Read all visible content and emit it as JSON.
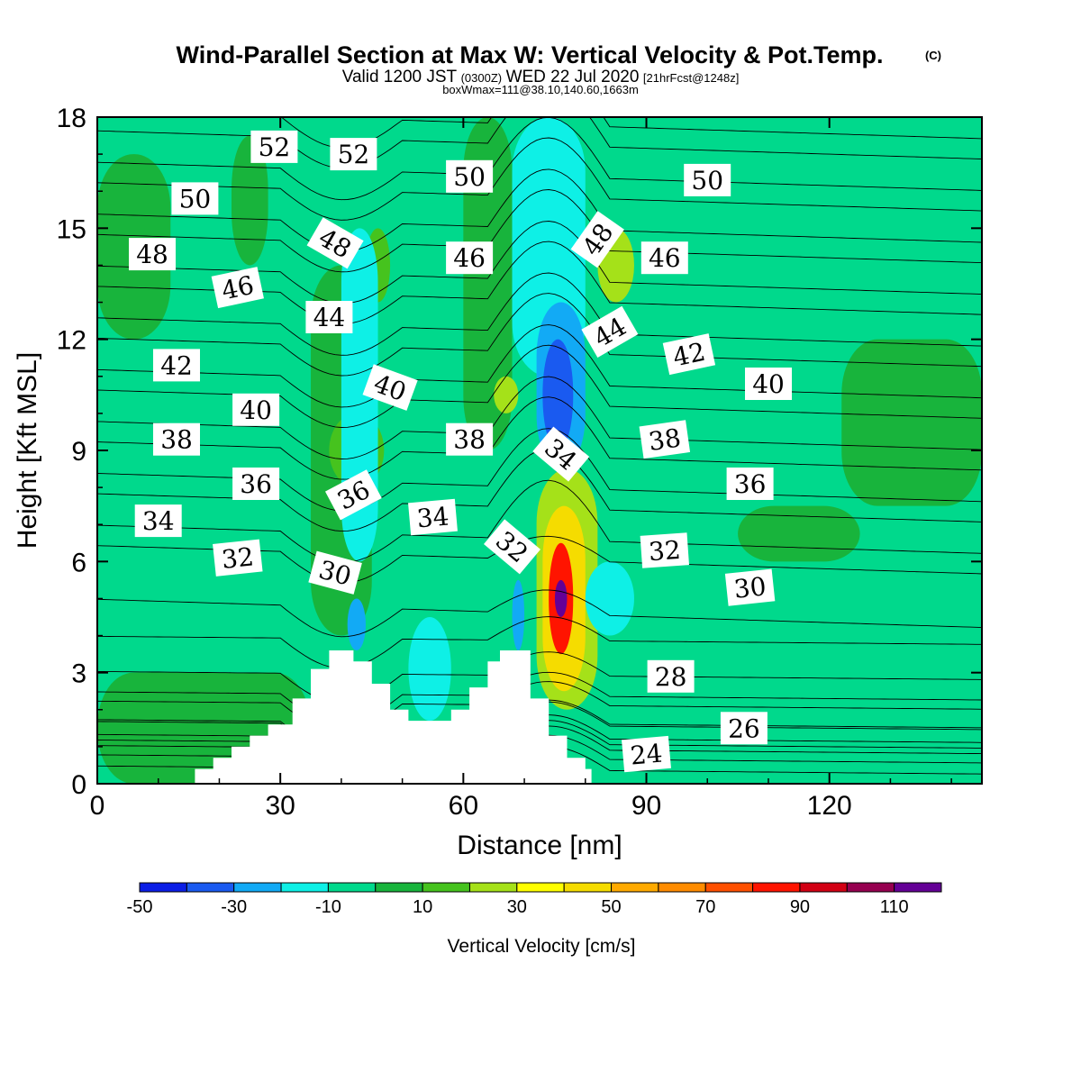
{
  "header": {
    "title": "Wind-Parallel Section at Max W: Vertical Velocity & Pot.Temp.",
    "copyright": "(C)",
    "valid_prefix": "Valid 1200 JST",
    "valid_utc": "(0300Z)",
    "valid_date": "WED 22 Jul 2020",
    "forecast": "[21hrFcst@1248z]",
    "box_info": "boxWmax=111@38.10,140.60,1663m"
  },
  "chart_data": {
    "type": "heatmap",
    "xlabel": "Distance [nm]",
    "ylabel": "Height [Kft MSL]",
    "xlim": [
      0,
      145
    ],
    "ylim": [
      0,
      18
    ],
    "x_ticks": [
      "0",
      "30",
      "60",
      "90",
      "120"
    ],
    "y_ticks": [
      "0",
      "3",
      "6",
      "9",
      "12",
      "15",
      "18"
    ],
    "colorbar": {
      "label": "Vertical Velocity [cm/s]",
      "bounds": [
        -50,
        120
      ],
      "levels": [
        -50,
        -40,
        -30,
        -20,
        -10,
        0,
        10,
        20,
        30,
        40,
        50,
        60,
        70,
        80,
        90,
        100,
        110,
        120
      ],
      "tick_labels": [
        "-50",
        "-30",
        "-10",
        "10",
        "30",
        "50",
        "70",
        "90",
        "110"
      ],
      "colors": [
        "#0b1ee6",
        "#1a5af0",
        "#12aaf5",
        "#0ef0e6",
        "#00d98c",
        "#18b43c",
        "#46c31e",
        "#a5e119",
        "#ffff00",
        "#f5dc00",
        "#ffaa00",
        "#ff8c00",
        "#ff5000",
        "#ff1400",
        "#d20014",
        "#960050",
        "#640096"
      ]
    },
    "terrain": {
      "note_free_field": false,
      "profile": [
        [
          0,
          0
        ],
        [
          16,
          0
        ],
        [
          16,
          0.4
        ],
        [
          19,
          0.4
        ],
        [
          19,
          0.7
        ],
        [
          22,
          0.7
        ],
        [
          22,
          1.0
        ],
        [
          25,
          1.0
        ],
        [
          25,
          1.3
        ],
        [
          28,
          1.3
        ],
        [
          28,
          1.6
        ],
        [
          32,
          1.6
        ],
        [
          32,
          2.3
        ],
        [
          35,
          2.3
        ],
        [
          35,
          3.1
        ],
        [
          38,
          3.1
        ],
        [
          38,
          3.6
        ],
        [
          42,
          3.6
        ],
        [
          42,
          3.3
        ],
        [
          45,
          3.3
        ],
        [
          45,
          2.7
        ],
        [
          48,
          2.7
        ],
        [
          48,
          2.0
        ],
        [
          51,
          2.0
        ],
        [
          51,
          1.7
        ],
        [
          58,
          1.7
        ],
        [
          58,
          2.0
        ],
        [
          61,
          2.0
        ],
        [
          61,
          2.6
        ],
        [
          64,
          2.6
        ],
        [
          64,
          3.3
        ],
        [
          66,
          3.3
        ],
        [
          66,
          3.6
        ],
        [
          71,
          3.6
        ],
        [
          71,
          2.3
        ],
        [
          74,
          2.3
        ],
        [
          74,
          1.3
        ],
        [
          77,
          1.3
        ],
        [
          77,
          0.7
        ],
        [
          80,
          0.7
        ],
        [
          80,
          0.4
        ],
        [
          81,
          0.4
        ],
        [
          81,
          0
        ],
        [
          145,
          0
        ]
      ]
    },
    "velocity_cells": [
      {
        "x": [
          0,
          145
        ],
        "y": [
          0,
          18
        ],
        "w": -5
      },
      {
        "x": [
          0,
          12
        ],
        "y": [
          12,
          17
        ],
        "w": 5
      },
      {
        "x": [
          22,
          28
        ],
        "y": [
          14,
          17.5
        ],
        "w": 5
      },
      {
        "x": [
          122,
          145
        ],
        "y": [
          7.5,
          12
        ],
        "w": 5
      },
      {
        "x": [
          105,
          125
        ],
        "y": [
          6,
          7.5
        ],
        "w": 5
      },
      {
        "x": [
          0,
          35
        ],
        "y": [
          0,
          3
        ],
        "w": 5
      },
      {
        "x": [
          35,
          45
        ],
        "y": [
          4,
          14
        ],
        "w": 5
      },
      {
        "x": [
          38,
          47
        ],
        "y": [
          8,
          10
        ],
        "w": 15
      },
      {
        "x": [
          44,
          48
        ],
        "y": [
          13,
          15
        ],
        "w": 15
      },
      {
        "x": [
          40,
          46
        ],
        "y": [
          6,
          15
        ],
        "w": -15
      },
      {
        "x": [
          41,
          44
        ],
        "y": [
          3.6,
          5
        ],
        "w": -25
      },
      {
        "x": [
          51,
          58
        ],
        "y": [
          1.7,
          4.5
        ],
        "w": -15
      },
      {
        "x": [
          60,
          68
        ],
        "y": [
          9,
          18
        ],
        "w": 5
      },
      {
        "x": [
          65,
          69
        ],
        "y": [
          10,
          11
        ],
        "w": 25
      },
      {
        "x": [
          68,
          80
        ],
        "y": [
          11,
          18
        ],
        "w": -15
      },
      {
        "x": [
          72,
          80
        ],
        "y": [
          8.5,
          13
        ],
        "w": -25
      },
      {
        "x": [
          73,
          78
        ],
        "y": [
          9,
          12
        ],
        "w": -40
      },
      {
        "x": [
          82,
          88
        ],
        "y": [
          13,
          15
        ],
        "w": 25
      },
      {
        "x": [
          68,
          70
        ],
        "y": [
          3.6,
          5.5
        ],
        "w": -30
      },
      {
        "x": [
          72,
          82
        ],
        "y": [
          2,
          8.5
        ],
        "w": 20
      },
      {
        "x": [
          73,
          80
        ],
        "y": [
          2.5,
          7.5
        ],
        "w": 45
      },
      {
        "x": [
          74,
          78
        ],
        "y": [
          3.5,
          6.5
        ],
        "w": 80
      },
      {
        "x": [
          75,
          77
        ],
        "y": [
          4.5,
          5.5
        ],
        "w": 110
      },
      {
        "x": [
          80,
          88
        ],
        "y": [
          4,
          6
        ],
        "w": -15
      }
    ],
    "isentropes": {
      "levels": [
        24,
        26,
        28,
        30,
        32,
        34,
        36,
        38,
        40,
        42,
        44,
        46,
        48,
        50,
        52
      ],
      "labels": [
        {
          "text": "52",
          "x": 29,
          "y": 17.2,
          "rotate": 0
        },
        {
          "text": "52",
          "x": 42,
          "y": 17.0,
          "rotate": 0
        },
        {
          "text": "50",
          "x": 16,
          "y": 15.8,
          "rotate": 0
        },
        {
          "text": "50",
          "x": 61,
          "y": 16.4,
          "rotate": 0
        },
        {
          "text": "50",
          "x": 100,
          "y": 16.3,
          "rotate": 0
        },
        {
          "text": "48",
          "x": 9,
          "y": 14.3,
          "rotate": 0
        },
        {
          "text": "48",
          "x": 39,
          "y": 14.6,
          "rotate": 30
        },
        {
          "text": "48",
          "x": 82,
          "y": 14.7,
          "rotate": -55
        },
        {
          "text": "46",
          "x": 23,
          "y": 13.4,
          "rotate": -12
        },
        {
          "text": "46",
          "x": 61,
          "y": 14.2,
          "rotate": 0
        },
        {
          "text": "46",
          "x": 93,
          "y": 14.2,
          "rotate": 0
        },
        {
          "text": "44",
          "x": 38,
          "y": 12.6,
          "rotate": 0
        },
        {
          "text": "44",
          "x": 84,
          "y": 12.2,
          "rotate": -30
        },
        {
          "text": "42",
          "x": 13,
          "y": 11.3,
          "rotate": 0
        },
        {
          "text": "42",
          "x": 97,
          "y": 11.6,
          "rotate": -12
        },
        {
          "text": "40",
          "x": 48,
          "y": 10.7,
          "rotate": 20
        },
        {
          "text": "40",
          "x": 26,
          "y": 10.1,
          "rotate": 0
        },
        {
          "text": "40",
          "x": 110,
          "y": 10.8,
          "rotate": 0
        },
        {
          "text": "38",
          "x": 13,
          "y": 9.3,
          "rotate": 0
        },
        {
          "text": "38",
          "x": 61,
          "y": 9.3,
          "rotate": 0
        },
        {
          "text": "38",
          "x": 93,
          "y": 9.3,
          "rotate": -8
        },
        {
          "text": "34",
          "x": 76,
          "y": 8.9,
          "rotate": 40
        },
        {
          "text": "36",
          "x": 26,
          "y": 8.1,
          "rotate": 0
        },
        {
          "text": "36",
          "x": 42,
          "y": 7.8,
          "rotate": -28
        },
        {
          "text": "36",
          "x": 107,
          "y": 8.1,
          "rotate": 0
        },
        {
          "text": "34",
          "x": 10,
          "y": 7.1,
          "rotate": 0
        },
        {
          "text": "34",
          "x": 55,
          "y": 7.2,
          "rotate": -5
        },
        {
          "text": "32",
          "x": 68,
          "y": 6.4,
          "rotate": 40
        },
        {
          "text": "32",
          "x": 23,
          "y": 6.1,
          "rotate": -6
        },
        {
          "text": "32",
          "x": 93,
          "y": 6.3,
          "rotate": -4
        },
        {
          "text": "30",
          "x": 39,
          "y": 5.7,
          "rotate": 15
        },
        {
          "text": "30",
          "x": 107,
          "y": 5.3,
          "rotate": -6
        },
        {
          "text": "28",
          "x": 94,
          "y": 2.9,
          "rotate": 0
        },
        {
          "text": "26",
          "x": 106,
          "y": 1.5,
          "rotate": 0
        },
        {
          "text": "24",
          "x": 90,
          "y": 0.8,
          "rotate": -5
        }
      ]
    }
  }
}
